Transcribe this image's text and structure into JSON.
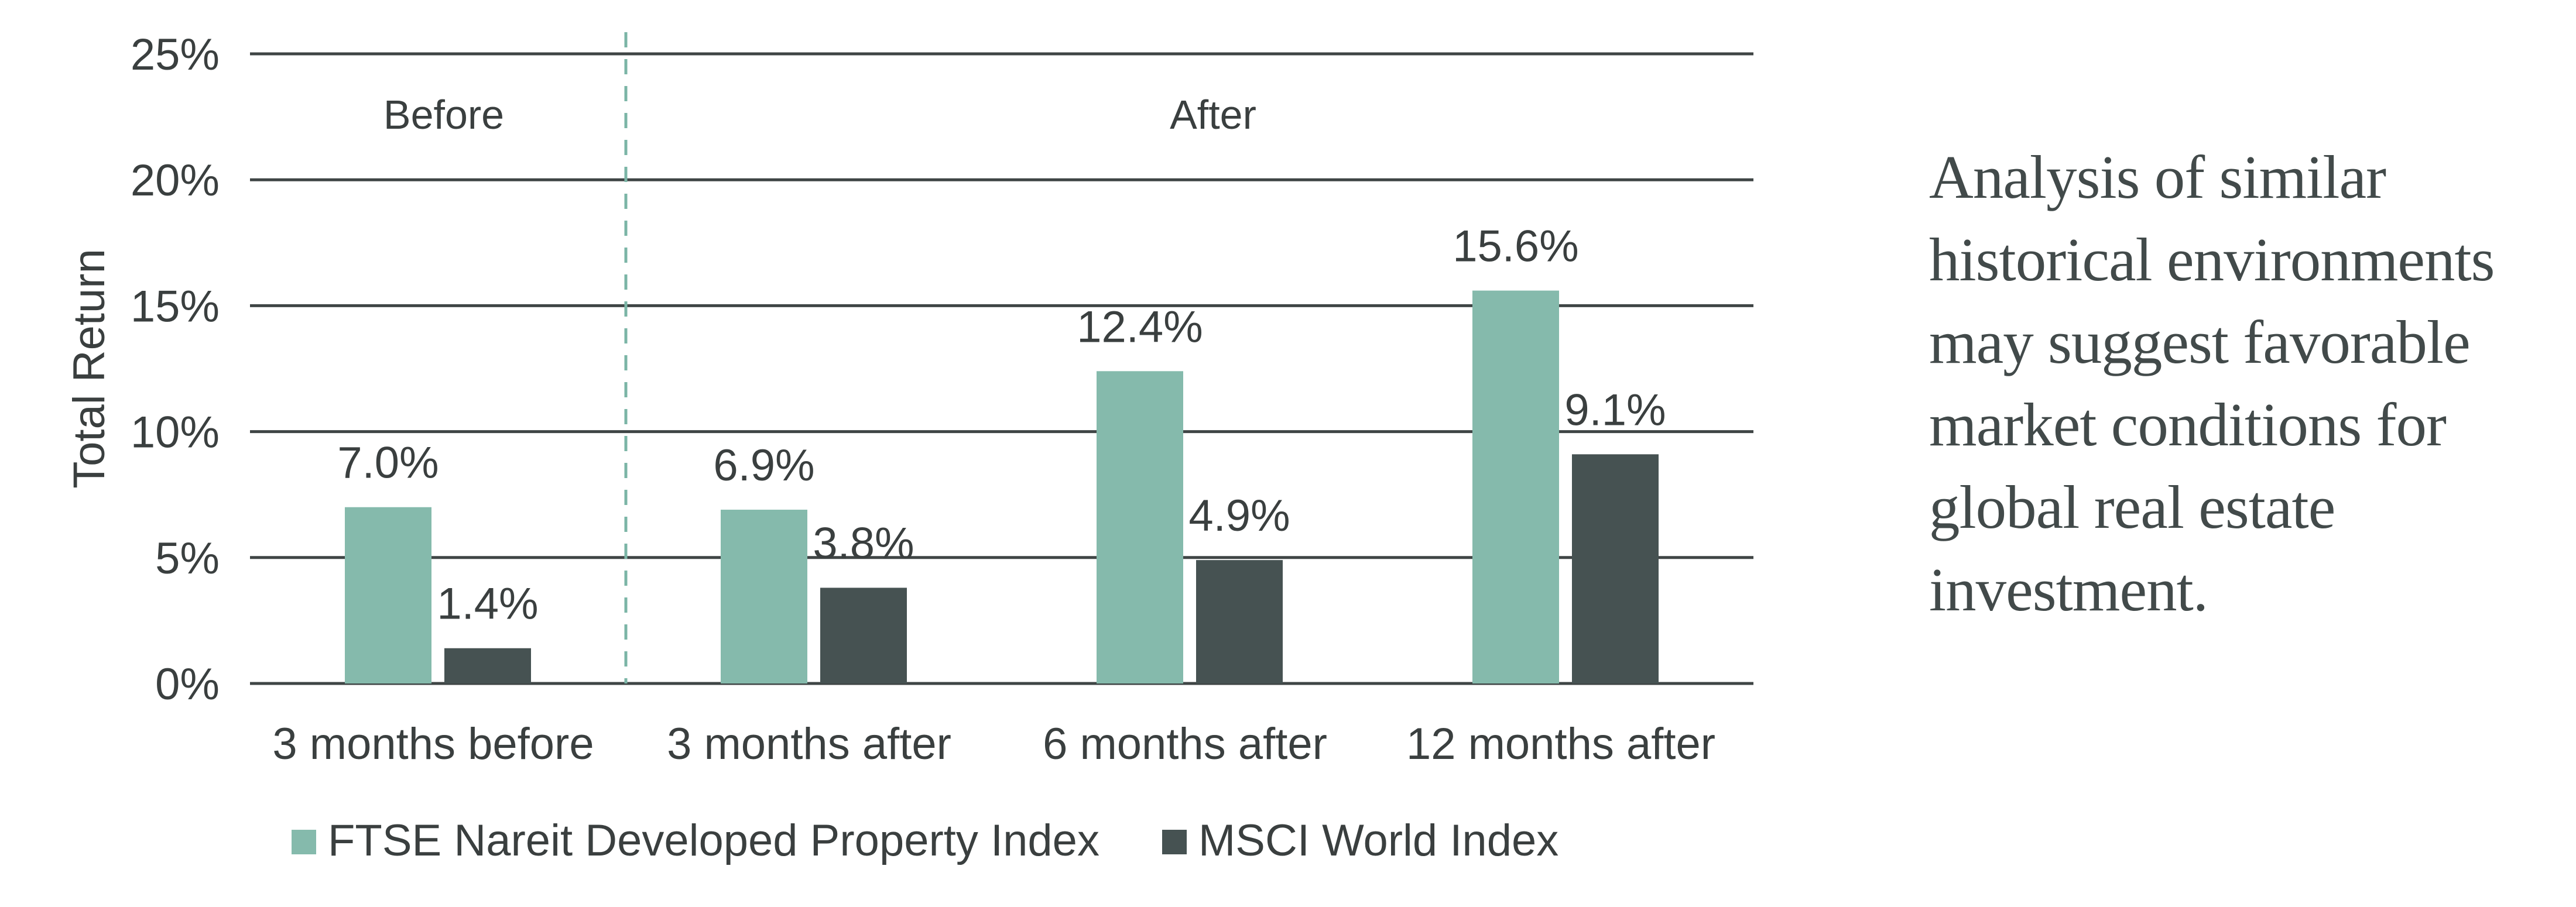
{
  "colors": {
    "series_1": "#85baac",
    "series_2": "#465252",
    "gridline": "#3f4545",
    "divider": "#7bb5a6",
    "text": "#3a3f3f"
  },
  "callout": {
    "text": "Analysis of similar historical environments may suggest favorable market conditions for global real estate investment."
  },
  "chart_data": {
    "type": "bar",
    "ylabel": "Total Return",
    "ylim": [
      0,
      25
    ],
    "y_ticks": [
      0,
      5,
      10,
      15,
      20,
      25
    ],
    "y_tick_labels": [
      "0%",
      "5%",
      "10%",
      "15%",
      "20%",
      "25%"
    ],
    "grid": true,
    "categories": [
      "3 months before",
      "3 months after",
      "6 months after",
      "12 months after"
    ],
    "series": [
      {
        "name": "FTSE Nareit Developed Property Index",
        "values": [
          7.0,
          6.9,
          12.4,
          15.6
        ],
        "labels": [
          "7.0%",
          "6.9%",
          "12.4%",
          "15.6%"
        ]
      },
      {
        "name": "MSCI World Index",
        "values": [
          1.4,
          3.8,
          4.9,
          9.1
        ],
        "labels": [
          "1.4%",
          "3.8%",
          "4.9%",
          "9.1%"
        ]
      }
    ],
    "regions": [
      "Before",
      "After"
    ],
    "divider_after_category": 0,
    "legend_position": "bottom-left"
  }
}
